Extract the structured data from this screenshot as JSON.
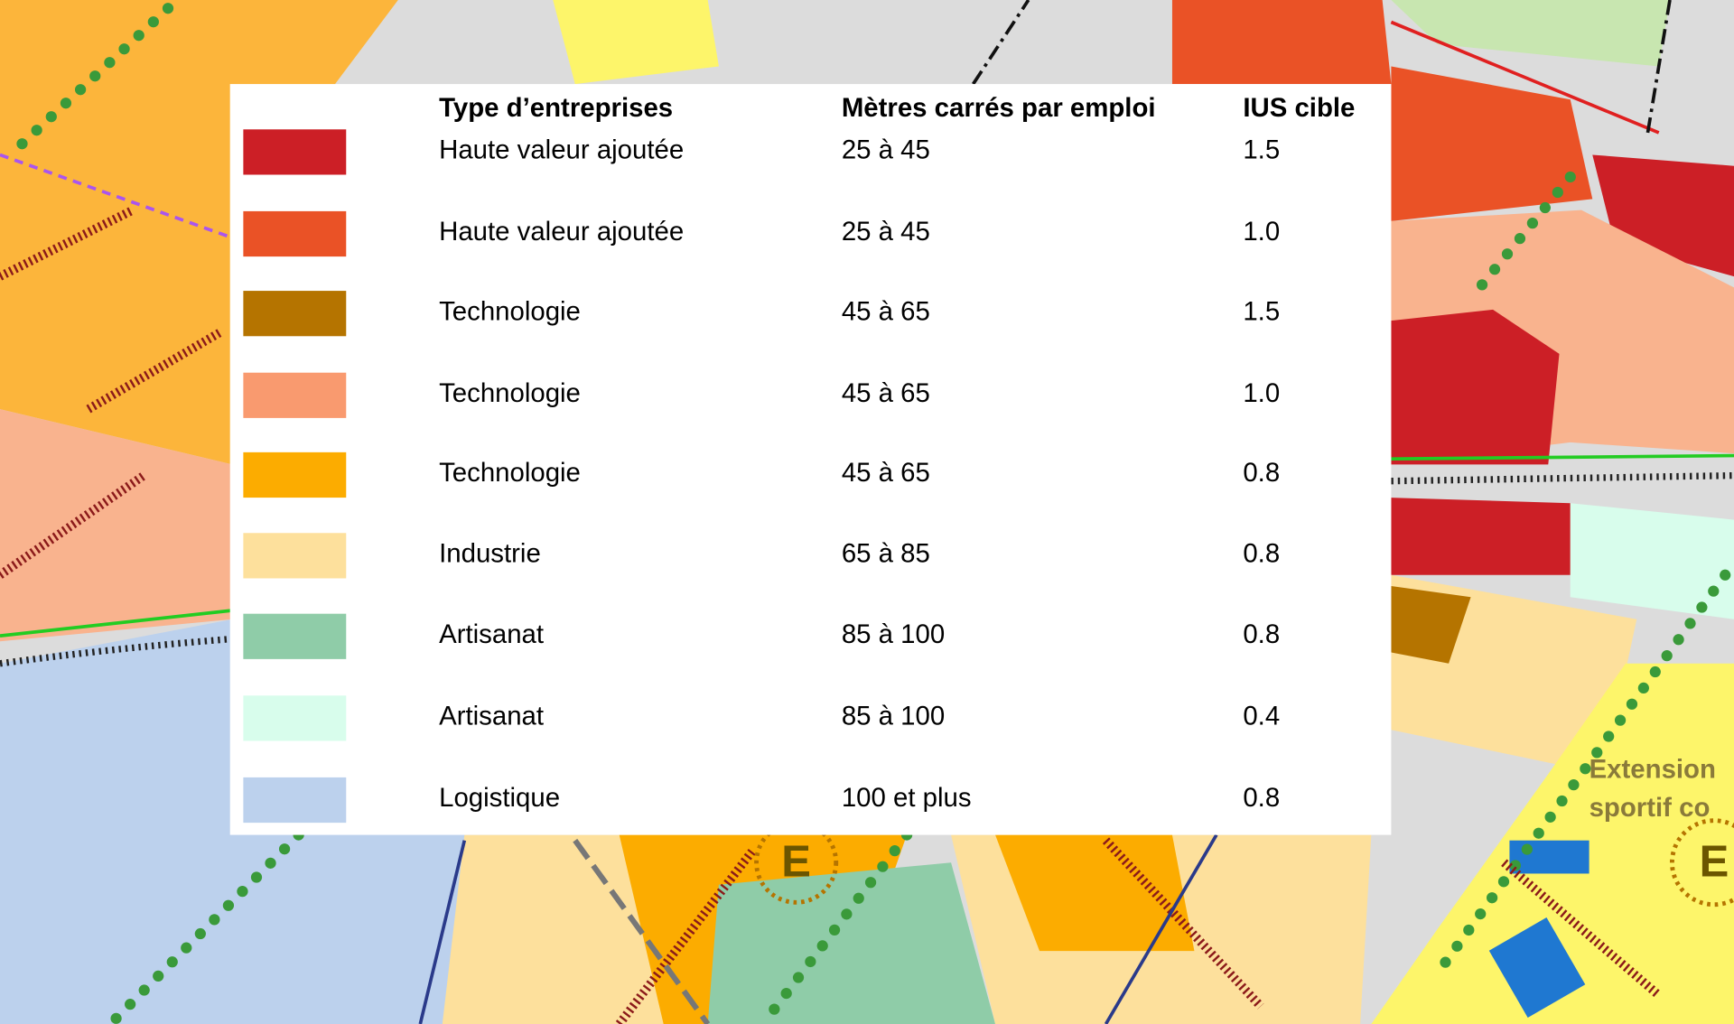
{
  "legend": {
    "header": {
      "type": "Type d’entreprises",
      "metres": "Mètres carrés par emploi",
      "ius": "IUS cible"
    },
    "rows": [
      {
        "color": "#cc1f26",
        "type": "Haute valeur ajoutée",
        "metres": "25 à 45",
        "ius": "1.5"
      },
      {
        "color": "#ea5226",
        "type": "Haute valeur ajoutée",
        "metres": "25 à 45",
        "ius": "1.0"
      },
      {
        "color": "#b57400",
        "type": "Technologie",
        "metres": "45 à 65",
        "ius": "1.5"
      },
      {
        "color": "#f99a6f",
        "type": "Technologie",
        "metres": "45 à 65",
        "ius": "1.0"
      },
      {
        "color": "#fcac00",
        "type": "Technologie",
        "metres": "45 à 65",
        "ius": "0.8"
      },
      {
        "color": "#fde09c",
        "type": "Industrie",
        "metres": "65 à 85",
        "ius": "0.8"
      },
      {
        "color": "#8fcca8",
        "type": "Artisanat",
        "metres": "85 à 100",
        "ius": "0.8"
      },
      {
        "color": "#d8fdec",
        "type": "Artisanat",
        "metres": "85 à 100",
        "ius": "0.4"
      },
      {
        "color": "#bcd1ed",
        "type": "Logistique",
        "metres": "100 et plus",
        "ius": "0.8"
      }
    ]
  },
  "map_labels": {
    "extension": "Extension",
    "sportif": "sportif co",
    "e1": "E",
    "e2": "E"
  }
}
